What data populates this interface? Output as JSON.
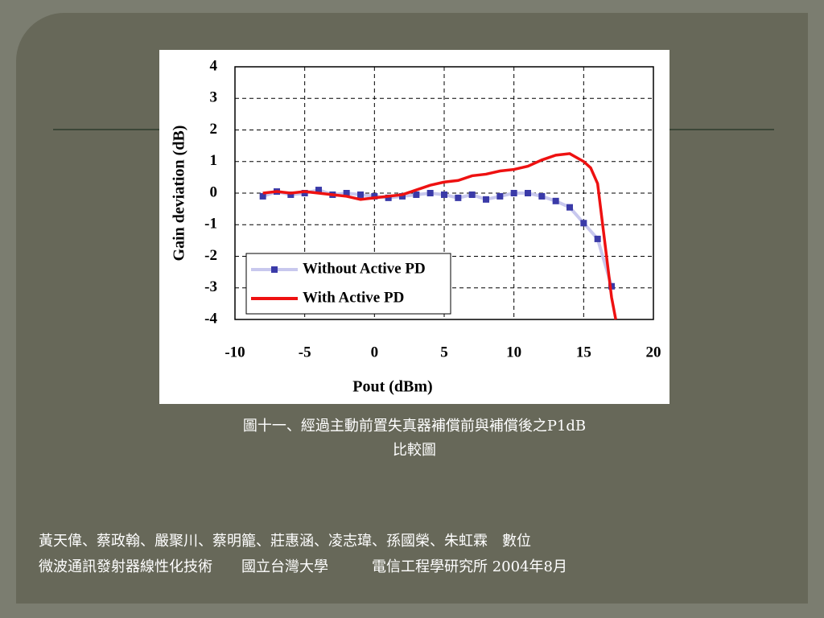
{
  "chart_data": {
    "type": "line",
    "xlabel": "Pout (dBm)",
    "ylabel": "Gain deviation (dB)",
    "xlim": [
      -10,
      20
    ],
    "xticks": [
      -10,
      -5,
      0,
      5,
      10,
      15,
      20
    ],
    "ylim": [
      -4,
      4
    ],
    "yticks": [
      -4,
      -3,
      -2,
      -1,
      0,
      1,
      2,
      3,
      4
    ],
    "grid": true,
    "legend_position": "lower left",
    "series": [
      {
        "name": "Without Active PD",
        "color": "#c8c8ee",
        "marker_color": "#3a3aa8",
        "x": [
          -8,
          -7,
          -6,
          -5,
          -4,
          -3,
          -2,
          -1,
          0,
          1,
          2,
          3,
          4,
          5,
          6,
          7,
          8,
          9,
          10,
          11,
          12,
          13,
          14,
          15,
          16,
          17
        ],
        "values": [
          -0.1,
          0.05,
          -0.05,
          0,
          0.1,
          -0.05,
          0,
          -0.05,
          -0.1,
          -0.15,
          -0.1,
          -0.05,
          0,
          -0.05,
          -0.15,
          -0.05,
          -0.2,
          -0.1,
          0,
          0,
          -0.1,
          -0.25,
          -0.45,
          -0.95,
          -1.45,
          -2.95
        ]
      },
      {
        "name": "With Active PD",
        "color": "#ee1111",
        "x": [
          -8,
          -7,
          -6,
          -5,
          -4,
          -3,
          -2,
          -1,
          0,
          1,
          2,
          3,
          4,
          5,
          6,
          7,
          8,
          9,
          10,
          11,
          12,
          13,
          14,
          15,
          15.5,
          16,
          16.5,
          17,
          17.3
        ],
        "values": [
          0,
          0.05,
          0,
          0.05,
          0,
          -0.05,
          -0.1,
          -0.2,
          -0.15,
          -0.1,
          -0.05,
          0.1,
          0.25,
          0.35,
          0.4,
          0.55,
          0.6,
          0.7,
          0.75,
          0.85,
          1.05,
          1.2,
          1.25,
          1.0,
          0.8,
          0.3,
          -1.5,
          -3.3,
          -4
        ]
      }
    ]
  },
  "caption": [
    "圖十一、經過主動前置失真器補償前與補償後之P1dB",
    "比較圖"
  ],
  "footer": [
    "黃天偉、蔡政翰、嚴聚川、蔡明籠、莊惠涵、凌志瑋、孫國榮、朱虹霖　數位",
    "微波通訊發射器線性化技術　　國立台灣大學　　　電信工程學研究所 2004年8月"
  ]
}
